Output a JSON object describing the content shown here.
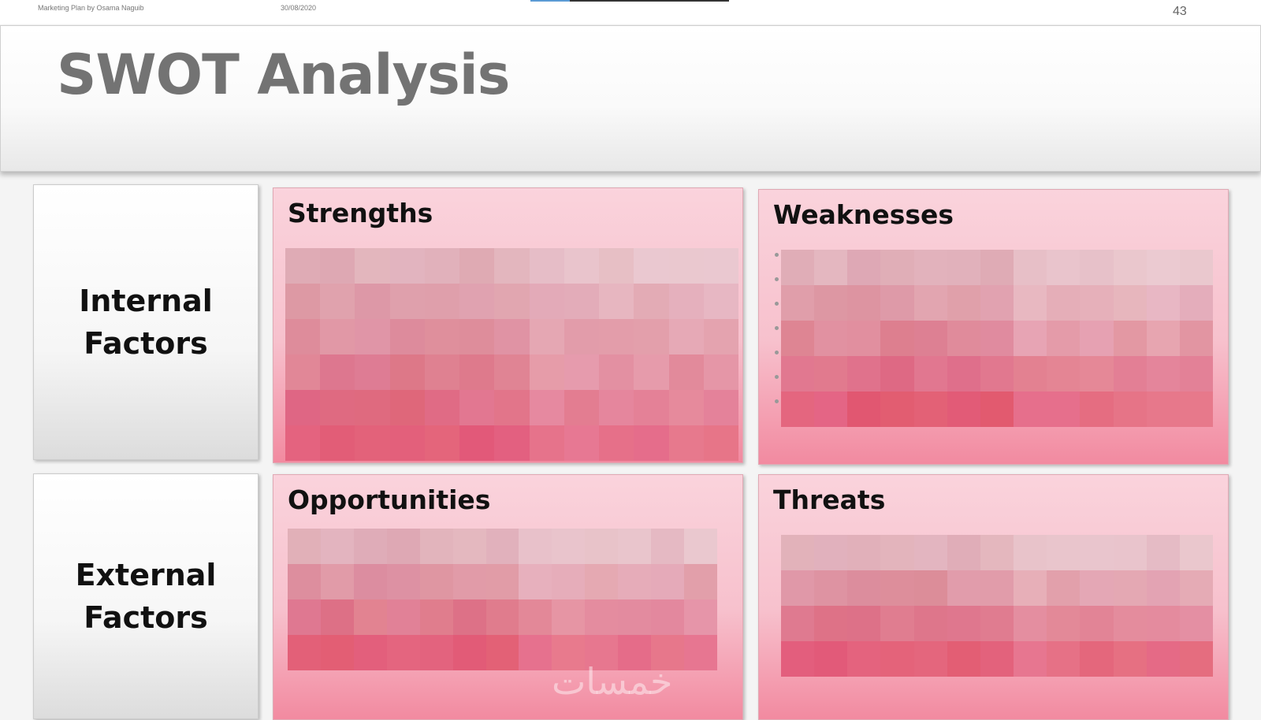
{
  "header": {
    "doc_title": "Marketing Plan by Osama Naguib",
    "date": "30/08/2020",
    "page_number": "43"
  },
  "slide": {
    "title": "SWOT Analysis",
    "factors": [
      {
        "label": "Internal\nFactors"
      },
      {
        "label": "External\nFactors"
      }
    ],
    "quadrants": [
      {
        "title": "Strengths",
        "content": "pixelated (obscured)"
      },
      {
        "title": "Weaknesses",
        "content": "pixelated (obscured)"
      },
      {
        "title": "Opportunities",
        "content": "pixelated (obscured)"
      },
      {
        "title": "Threats",
        "content": "pixelated (obscured)"
      }
    ],
    "watermark": "خمسات"
  },
  "colors": {
    "quadrant_top": "#fad3dc",
    "quadrant_bottom": "#f28aa0",
    "title": "#737373"
  }
}
